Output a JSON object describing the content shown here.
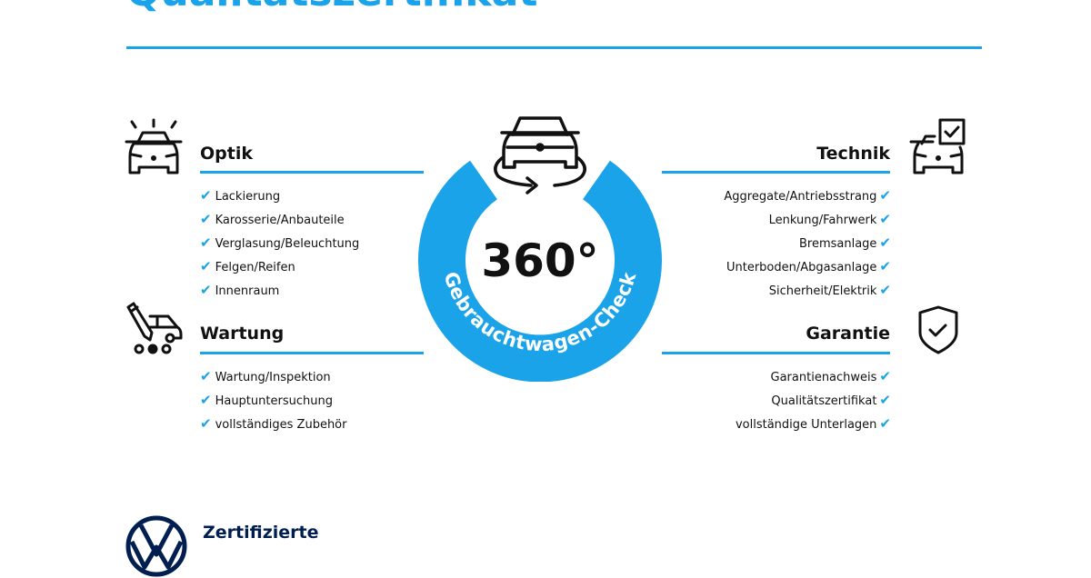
{
  "title": "Qualitätszertifikat",
  "accent_color": "#1aa3e8",
  "brand_color": "#001e50",
  "center": {
    "value": "360°",
    "arc_text": "Gebrauchtwagen-Check",
    "icon": "car-rotate-icon"
  },
  "sections": {
    "optik": {
      "heading": "Optik",
      "icon": "car-shine-icon",
      "items": [
        "Lackierung",
        "Karosserie/Anbauteile",
        "Verglasung/Beleuchtung",
        "Felgen/Reifen",
        "Innenraum"
      ]
    },
    "wartung": {
      "heading": "Wartung",
      "icon": "car-service-icon",
      "items": [
        "Wartung/Inspektion",
        "Hauptuntersuchung",
        "vollständiges Zubehör"
      ]
    },
    "technik": {
      "heading": "Technik",
      "icon": "car-check-icon",
      "items": [
        "Aggregate/Antriebsstrang",
        "Lenkung/Fahrwerk",
        "Bremsanlage",
        "Unterboden/Abgasanlage",
        "Sicherheit/Elektrik"
      ]
    },
    "garantie": {
      "heading": "Garantie",
      "icon": "shield-check-icon",
      "items": [
        "Garantienachweis",
        "Qualitätszertifikat",
        "vollständige Unterlagen"
      ]
    }
  },
  "check_glyph": "✔",
  "footer": {
    "brand_text": "Zertifizierte"
  }
}
